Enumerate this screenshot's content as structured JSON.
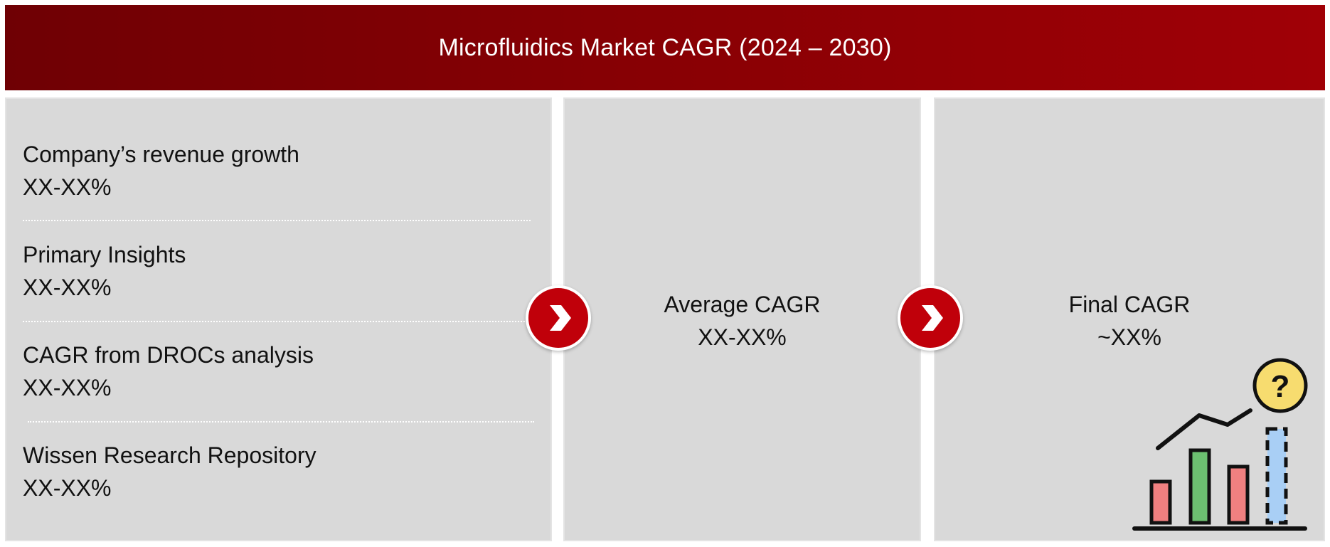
{
  "header": {
    "title": "Microfluidics Market CAGR (2024 – 2030)"
  },
  "sources": [
    {
      "label": "Company’s revenue growth",
      "value": "XX-XX%"
    },
    {
      "label": "Primary Insights",
      "value": "XX-XX%"
    },
    {
      "label": "CAGR from DROCs analysis",
      "value": "XX-XX%"
    },
    {
      "label": "Wissen Research Repository",
      "value": "XX-XX%"
    }
  ],
  "average": {
    "label": "Average CAGR",
    "value": "XX-XX%"
  },
  "final": {
    "label": "Final CAGR",
    "value": "~XX%"
  },
  "icons": {
    "arrow_1": "chevron-right-icon",
    "arrow_2": "chevron-right-icon",
    "illustration": "chart-question-icon"
  },
  "colors": {
    "header": "#8a0004",
    "panel": "#d9d9d9",
    "arrow": "#c0000a",
    "bar_red": "#f08080",
    "bar_green": "#6cc070",
    "bar_blue": "#a9cff5",
    "question_bubble": "#f7dc6f"
  }
}
